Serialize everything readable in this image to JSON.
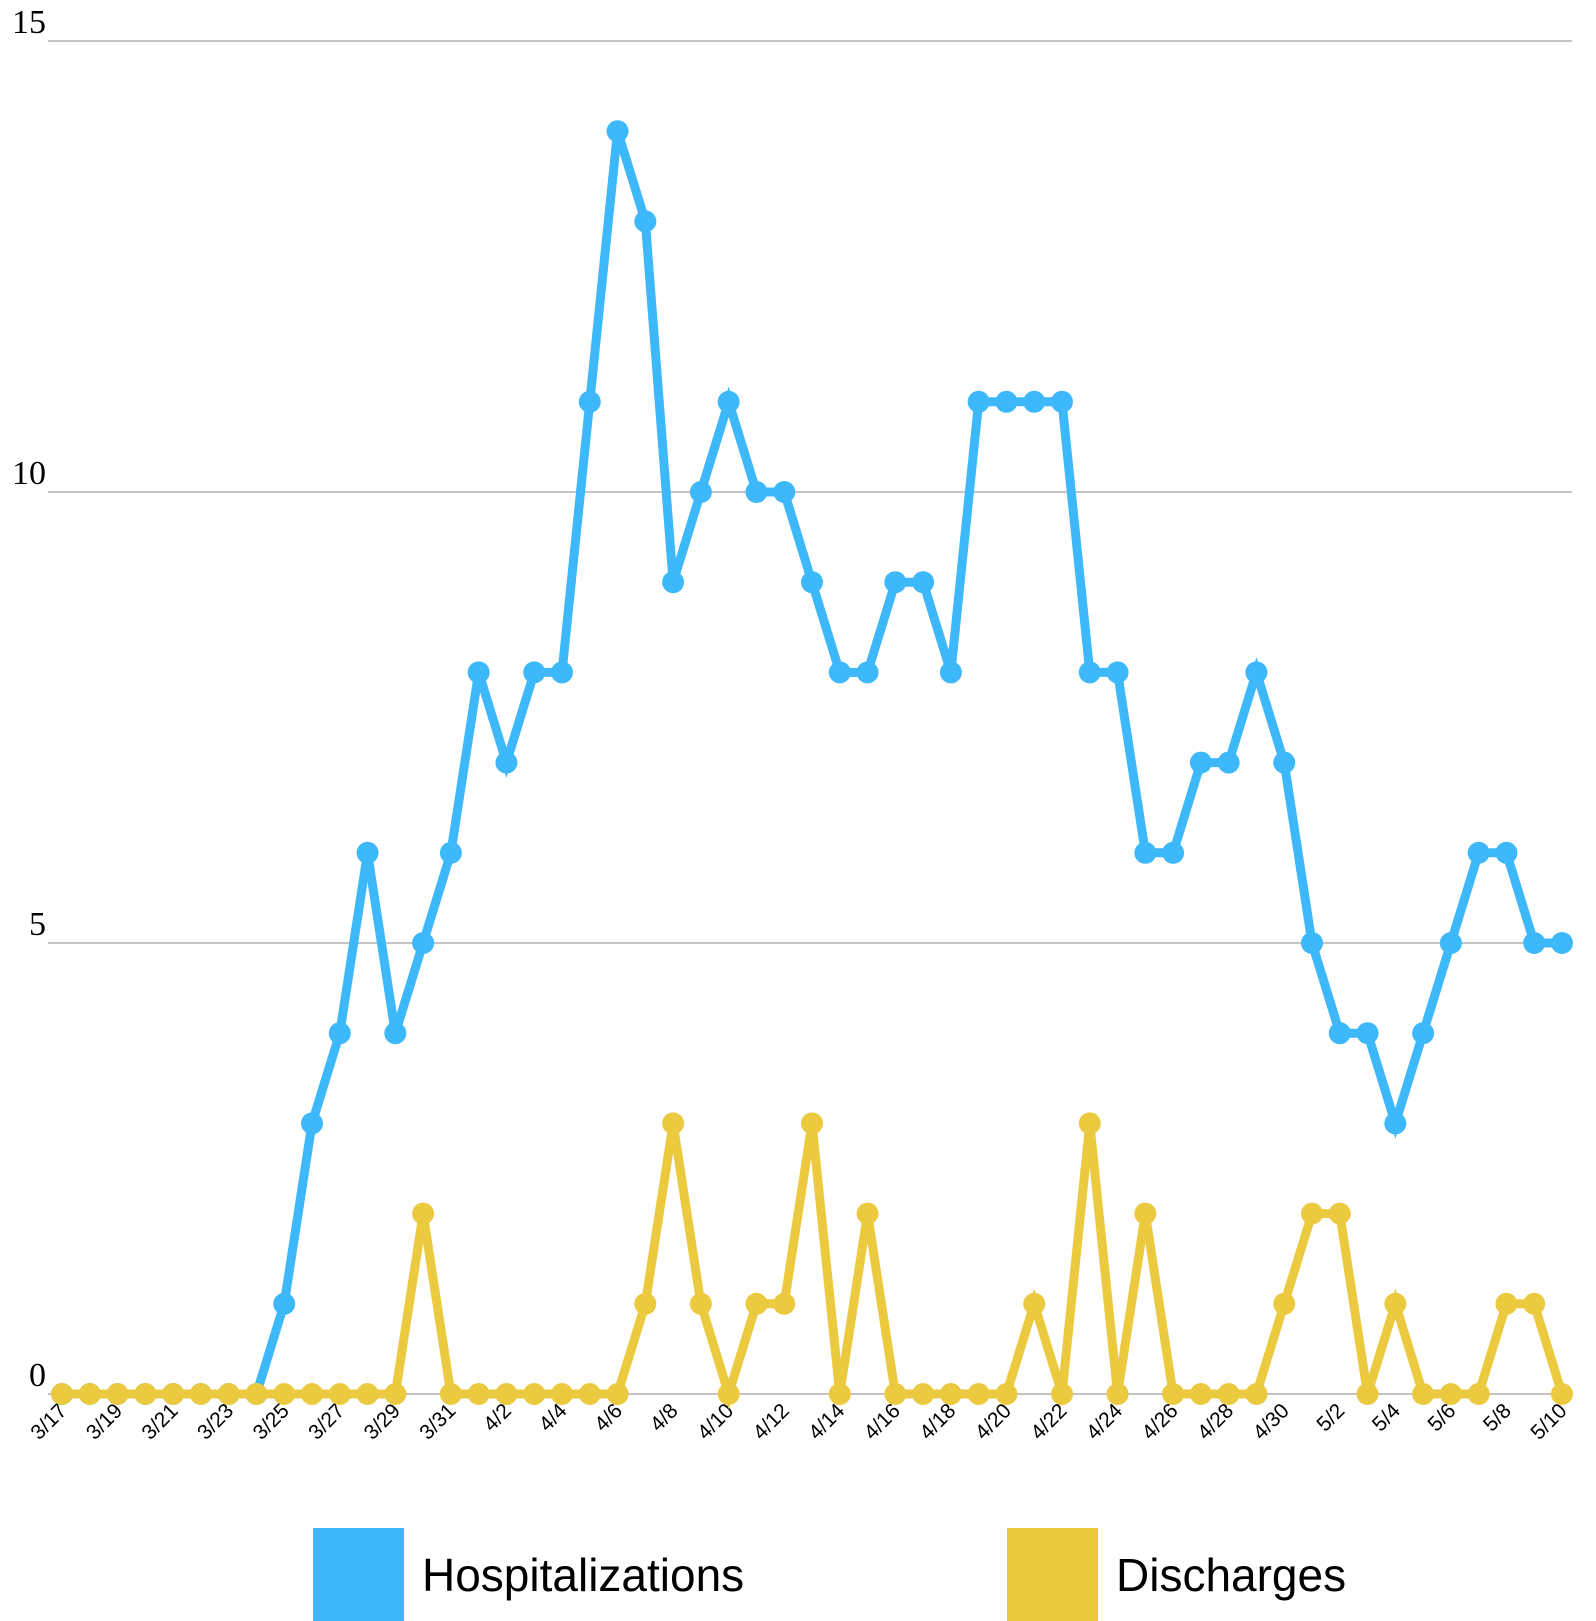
{
  "chart_data": {
    "type": "line",
    "title": "",
    "xlabel": "",
    "ylabel": "",
    "ylim": [
      0,
      15
    ],
    "yticks": [
      0,
      5,
      10,
      15
    ],
    "grid": true,
    "legend_position": "bottom",
    "x": [
      "3/17",
      "3/18",
      "3/19",
      "3/20",
      "3/21",
      "3/22",
      "3/23",
      "3/24",
      "3/25",
      "3/26",
      "3/27",
      "3/28",
      "3/29",
      "3/30",
      "3/31",
      "4/1",
      "4/2",
      "4/3",
      "4/4",
      "4/5",
      "4/6",
      "4/7",
      "4/8",
      "4/9",
      "4/10",
      "4/11",
      "4/12",
      "4/13",
      "4/14",
      "4/15",
      "4/16",
      "4/17",
      "4/18",
      "4/19",
      "4/20",
      "4/21",
      "4/22",
      "4/23",
      "4/24",
      "4/25",
      "4/26",
      "4/27",
      "4/28",
      "4/29",
      "4/30",
      "5/1",
      "5/2",
      "5/3",
      "5/4",
      "5/5",
      "5/6",
      "5/7",
      "5/8",
      "5/9",
      "5/10"
    ],
    "x_tick_labels": [
      "3/17",
      "3/19",
      "3/21",
      "3/23",
      "3/25",
      "3/27",
      "3/29",
      "3/31",
      "4/2",
      "4/4",
      "4/6",
      "4/8",
      "4/10",
      "4/12",
      "4/14",
      "4/16",
      "4/18",
      "4/20",
      "4/22",
      "4/24",
      "4/26",
      "4/28",
      "4/30",
      "5/2",
      "5/4",
      "5/6",
      "5/8",
      "5/10"
    ],
    "series": [
      {
        "name": "Hospitalizations",
        "color": "#3db8fa",
        "values": [
          0,
          0,
          0,
          0,
          0,
          0,
          0,
          0,
          1,
          3,
          4,
          6,
          4,
          5,
          6,
          8,
          7,
          8,
          8,
          11,
          14,
          13,
          9,
          10,
          11,
          10,
          10,
          9,
          8,
          8,
          9,
          9,
          8,
          11,
          11,
          11,
          11,
          8,
          8,
          6,
          6,
          7,
          7,
          8,
          7,
          5,
          4,
          4,
          3,
          4,
          5,
          6,
          6,
          5,
          5
        ]
      },
      {
        "name": "Discharges",
        "color": "#ebca40",
        "values": [
          0,
          0,
          0,
          0,
          0,
          0,
          0,
          0,
          0,
          0,
          0,
          0,
          0,
          2,
          0,
          0,
          0,
          0,
          0,
          0,
          0,
          1,
          3,
          1,
          0,
          1,
          1,
          3,
          0,
          2,
          0,
          0,
          0,
          0,
          0,
          1,
          0,
          3,
          0,
          2,
          0,
          0,
          0,
          0,
          1,
          2,
          2,
          0,
          1,
          0,
          0,
          0,
          1,
          1,
          0
        ]
      }
    ]
  }
}
